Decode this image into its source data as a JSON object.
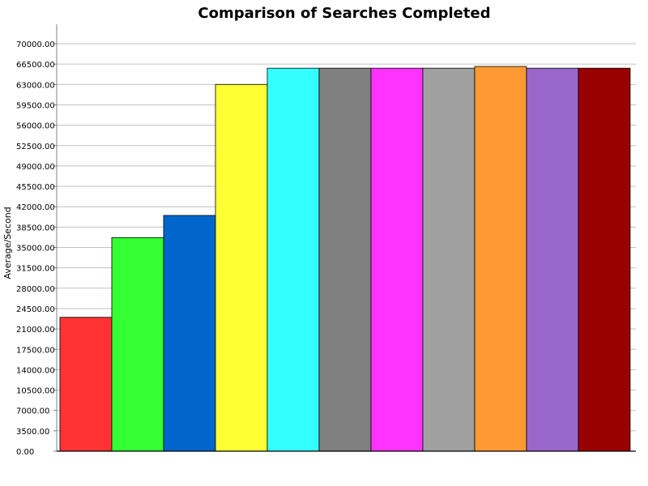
{
  "chart_data": {
    "type": "bar",
    "title": "Comparison of Searches Completed",
    "xlabel": "",
    "ylabel": "Average/Second",
    "ylim": [
      0,
      70000
    ],
    "yticks": [
      0,
      3500,
      7000,
      10500,
      14000,
      17500,
      21000,
      24500,
      28000,
      31500,
      35000,
      38500,
      42000,
      45500,
      49000,
      52500,
      56000,
      59500,
      63000,
      66500,
      70000
    ],
    "ytick_labels": [
      "0.00",
      "3500.00",
      "7000.00",
      "10500.00",
      "14000.00",
      "17500.00",
      "21000.00",
      "24500.00",
      "28000.00",
      "31500.00",
      "35000.00",
      "38500.00",
      "42000.00",
      "45500.00",
      "49000.00",
      "52500.00",
      "56000.00",
      "59500.00",
      "63000.00",
      "66500.00",
      "70000.00"
    ],
    "grid": true,
    "values": [
      23000,
      36700,
      40500,
      63000,
      65800,
      65800,
      65800,
      65800,
      66100,
      65800,
      65800
    ],
    "colors": [
      "#ff3333",
      "#33ff33",
      "#0066cc",
      "#ffff33",
      "#33ffff",
      "#808080",
      "#ff33ff",
      "#a0a0a0",
      "#ff9933",
      "#9966cc",
      "#990000"
    ]
  }
}
